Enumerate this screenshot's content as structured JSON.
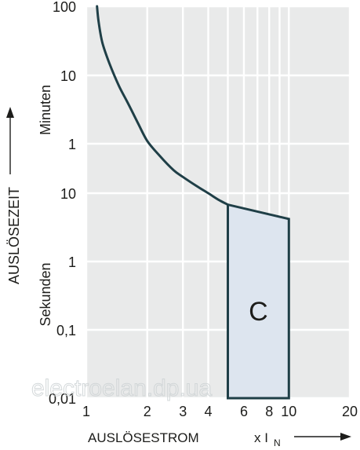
{
  "chart_data": {
    "type": "line",
    "x_scale": "log",
    "y_scale": "log",
    "grid": true,
    "xlabel": "AUSLÖSESTROM",
    "xlabel_suffix_main": "x I",
    "xlabel_suffix_sub": "N",
    "ylabel": "AUSLÖSEZEIT",
    "y_units_upper": "Minuten",
    "y_units_lower": "Sekunden",
    "x_ticks": [
      {
        "value": 1,
        "label": "1"
      },
      {
        "value": 2,
        "label": "2"
      },
      {
        "value": 3,
        "label": "3"
      },
      {
        "value": 4,
        "label": "4"
      },
      {
        "value": 6,
        "label": "6"
      },
      {
        "value": 8,
        "label": "8"
      },
      {
        "value": 10,
        "label": "10"
      },
      {
        "value": 20,
        "label": "20"
      }
    ],
    "x_grid": [
      1,
      2,
      3,
      4,
      5,
      6,
      7,
      8,
      9,
      10,
      20
    ],
    "xlim": [
      1,
      20
    ],
    "y_ticks": [
      {
        "value_seconds": 6000,
        "label": "100"
      },
      {
        "value_seconds": 600,
        "label": "10"
      },
      {
        "value_seconds": 60,
        "label": "1"
      },
      {
        "value_seconds": 10,
        "label": "10"
      },
      {
        "value_seconds": 1,
        "label": "1"
      },
      {
        "value_seconds": 0.1,
        "label": "0,1"
      },
      {
        "value_seconds": 0.01,
        "label": "0,01"
      }
    ],
    "ylim_seconds": [
      0.01,
      6000
    ],
    "series": [
      {
        "type": "line",
        "x": [
          1.13,
          1.15,
          1.2,
          1.3,
          1.45,
          1.6,
          1.8,
          2.0,
          2.3,
          2.7,
          3.0,
          3.5,
          4.0,
          4.5,
          5.0
        ],
        "y_seconds": [
          6000,
          3600,
          1800,
          900,
          420,
          240,
          120,
          66,
          39,
          23,
          18,
          13,
          10,
          8,
          6.8
        ]
      },
      {
        "type": "area",
        "label": "C",
        "x": [
          5.0,
          5.0,
          10.0,
          10.0,
          5.0
        ],
        "y_seconds": [
          0.01,
          6.8,
          4.2,
          0.01,
          0.01
        ]
      }
    ],
    "colors": {
      "background": "#e9eaea",
      "grid": "#ffffff",
      "line": "#1f3f47",
      "zone_fill": "#dde5ef",
      "zone_stroke": "#1f3f47"
    }
  },
  "watermark": "electroelan.dp.ua"
}
